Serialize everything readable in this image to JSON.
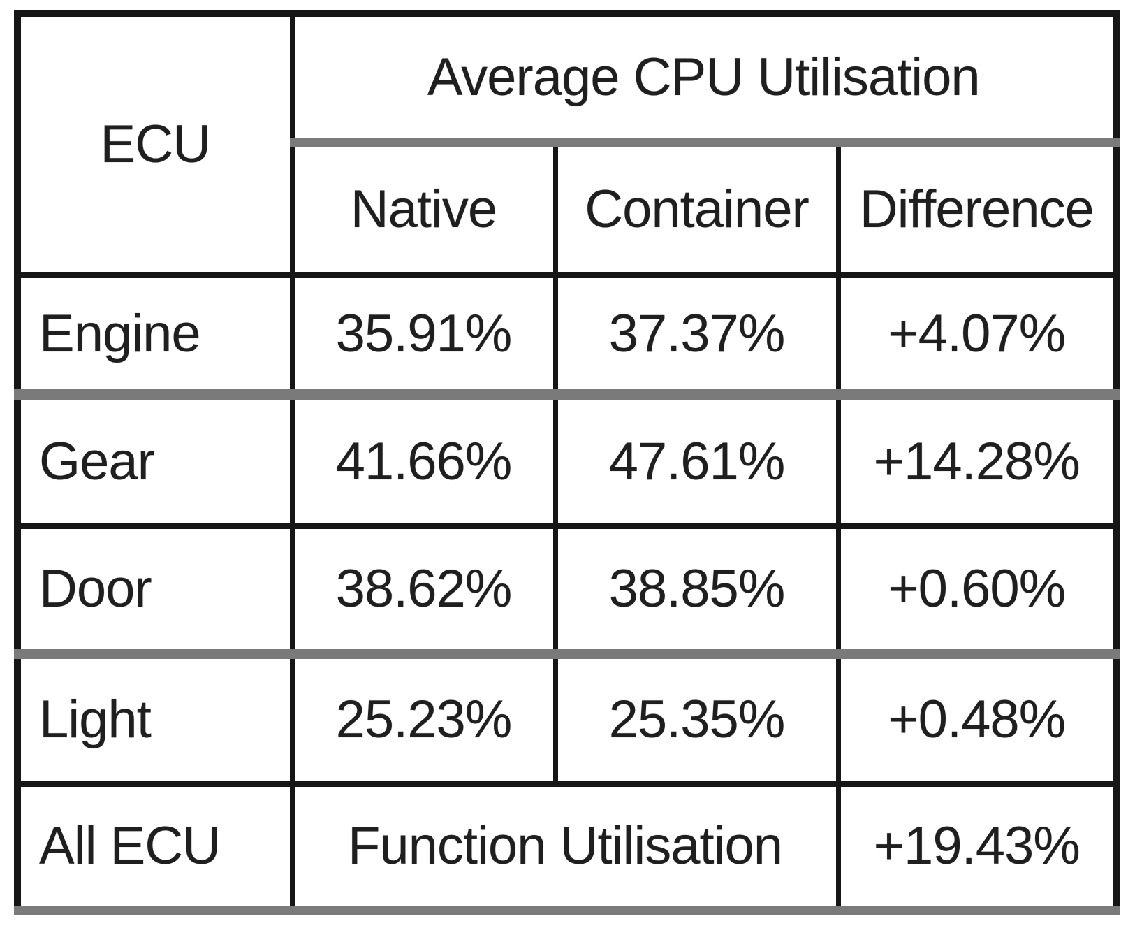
{
  "table": {
    "title_cell": "ECU",
    "group_header": "Average CPU Utilisation",
    "sub_headers": {
      "native": "Native",
      "container": "Container",
      "difference": "Difference"
    },
    "rows": [
      {
        "ecu": "Engine",
        "native": "35.91%",
        "container": "37.37%",
        "difference": "+4.07%"
      },
      {
        "ecu": "Gear",
        "native": "41.66%",
        "container": "47.61%",
        "difference": "+14.28%"
      },
      {
        "ecu": "Door",
        "native": "38.62%",
        "container": "38.85%",
        "difference": "+0.60%"
      },
      {
        "ecu": "Light",
        "native": "25.23%",
        "container": "25.35%",
        "difference": "+0.48%"
      }
    ],
    "summary_row": {
      "ecu": "All ECU",
      "merged_label": "Function Utilisation",
      "difference": "+19.43%"
    }
  },
  "chart_data": {
    "type": "table",
    "title": "Average CPU Utilisation",
    "categories": [
      "Engine",
      "Gear",
      "Door",
      "Light"
    ],
    "series": [
      {
        "name": "Native",
        "values": [
          35.91,
          41.66,
          38.62,
          25.23
        ]
      },
      {
        "name": "Container",
        "values": [
          37.37,
          47.61,
          38.85,
          25.35
        ]
      },
      {
        "name": "Difference",
        "values": [
          4.07,
          14.28,
          0.6,
          0.48
        ]
      }
    ],
    "summary": {
      "label": "All ECU Function Utilisation",
      "difference_pct": 19.43
    }
  },
  "colors": {
    "border_black": "#161616",
    "border_gray": "#7a7a7a",
    "text": "#1f1f1f",
    "background": "#ffffff"
  }
}
